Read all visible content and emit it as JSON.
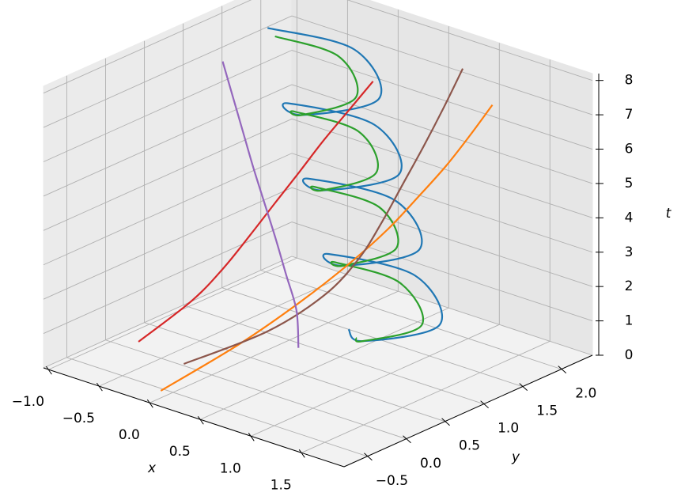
{
  "chart_data": {
    "type": "line3d",
    "xlabel": "x",
    "ylabel": "y",
    "zlabel": "t",
    "xlim": [
      -1.05,
      1.92
    ],
    "ylim": [
      -0.8,
      2.4
    ],
    "zlim": [
      0,
      8.2
    ],
    "xticks": [
      {
        "value": -1,
        "label": "−1.0"
      },
      {
        "value": -0.5,
        "label": "−0.5"
      },
      {
        "value": 0,
        "label": "0.0"
      },
      0.5,
      {
        "value": 1,
        "label": "1.0"
      },
      1.5
    ],
    "yticks": [
      {
        "value": -0.5,
        "label": "−0.5"
      },
      {
        "value": 0,
        "label": "0.0"
      },
      0.5,
      {
        "value": 1,
        "label": "1.0"
      },
      1.5,
      {
        "value": 2,
        "label": "2.0"
      }
    ],
    "zticks": [
      0,
      1,
      2,
      3,
      4,
      5,
      6,
      7,
      8
    ],
    "grid": true,
    "series": [
      {
        "color": "#1f77b4",
        "t": [
          0,
          0.5,
          1,
          1.5,
          2,
          2.5,
          3,
          3.5,
          4,
          4.5,
          5,
          5.5,
          6,
          6.5,
          7,
          7.5,
          8
        ],
        "x": [
          0.2,
          0.65,
          1.1,
          0.55,
          0.0,
          0.45,
          0.9,
          0.35,
          -0.2,
          0.25,
          0.7,
          0.15,
          -0.4,
          0.05,
          0.5,
          -0.05,
          -0.6
        ],
        "y": [
          1.5,
          1.1,
          1.5,
          1.9,
          1.5,
          1.1,
          1.5,
          1.9,
          1.5,
          1.1,
          1.5,
          1.9,
          1.5,
          1.1,
          1.5,
          1.9,
          1.5
        ]
      },
      {
        "color": "#2ca02c",
        "t": [
          0,
          0.5,
          1,
          1.5,
          2,
          2.5,
          3,
          3.5,
          4,
          4.5,
          5,
          5.5,
          6,
          6.5,
          7,
          7.5,
          8
        ],
        "x": [
          0.35,
          0.65,
          1.0,
          0.55,
          0.15,
          0.45,
          0.75,
          0.35,
          -0.05,
          0.25,
          0.55,
          0.15,
          -0.25,
          0.05,
          0.35,
          -0.05,
          -0.45
        ],
        "y": [
          1.4,
          1.1,
          1.4,
          1.7,
          1.4,
          1.1,
          1.4,
          1.7,
          1.4,
          1.1,
          1.4,
          1.7,
          1.4,
          1.1,
          1.4,
          1.7,
          1.4
        ]
      },
      {
        "color": "#d62728",
        "t": [
          0,
          1,
          2,
          3,
          4,
          5,
          6,
          7,
          8
        ],
        "x": [
          -0.84,
          -0.62,
          -0.42,
          -0.25,
          -0.08,
          0.1,
          0.28,
          0.48,
          0.68
        ],
        "y": [
          0.15,
          0.55,
          0.7,
          0.82,
          0.92,
          1.0,
          1.07,
          1.13,
          1.19
        ]
      },
      {
        "color": "#ff7f0e",
        "t": [
          0,
          1,
          2,
          3,
          4,
          5,
          6,
          7,
          8
        ],
        "x": [
          -0.09,
          0.2,
          0.45,
          0.68,
          0.9,
          1.1,
          1.3,
          1.48,
          1.66
        ],
        "y": [
          -0.54,
          0.1,
          0.55,
          0.88,
          1.09,
          1.22,
          1.32,
          1.4,
          1.45
        ]
      },
      {
        "color": "#8c564b",
        "t": [
          0,
          1,
          2,
          3,
          4,
          5,
          6,
          7,
          8
        ],
        "x": [
          -0.3,
          0.2,
          0.5,
          0.67,
          0.77,
          0.85,
          0.92,
          0.98,
          1.03
        ],
        "y": [
          0.03,
          0.45,
          0.8,
          1.02,
          1.19,
          1.35,
          1.53,
          1.71,
          1.89
        ]
      },
      {
        "color": "#9467bd",
        "t": [
          0,
          1,
          2,
          3,
          4,
          5,
          6,
          7,
          8
        ],
        "x": [
          0.15,
          0.1,
          0.02,
          -0.06,
          -0.14,
          -0.22,
          -0.29,
          -0.36,
          -0.43
        ],
        "y": [
          0.92,
          0.96,
          0.93,
          0.9,
          0.86,
          0.82,
          0.78,
          0.74,
          0.7
        ]
      }
    ]
  }
}
